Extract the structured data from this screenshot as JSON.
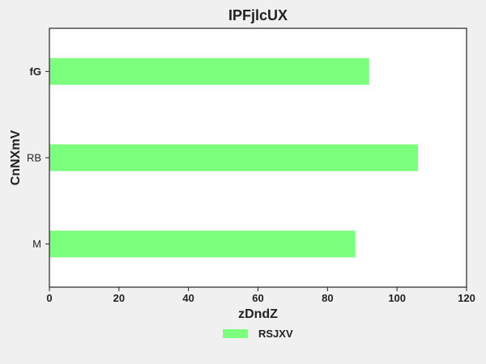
{
  "chart_data": {
    "type": "bar",
    "orientation": "horizontal",
    "title": "IPFjlcUX",
    "xlabel": "zDndZ",
    "ylabel": "CnNXmV",
    "categories": [
      "M",
      "RB",
      "fG"
    ],
    "series": [
      {
        "name": "RSJXV",
        "values": [
          88,
          106,
          92
        ],
        "color": "#7cff7c"
      }
    ],
    "xlim": [
      0,
      120
    ],
    "x_ticks": [
      0,
      20,
      40,
      60,
      80,
      100,
      120
    ],
    "x_tick_labels": [
      "0",
      "20",
      "40",
      "60",
      "80",
      "100",
      "120"
    ],
    "category_label_weights": [
      "normal",
      "normal",
      "bold"
    ],
    "grid": false,
    "legend": {
      "placement": "bottom-center",
      "entries": [
        "RSJXV"
      ]
    },
    "colors": {
      "background": "#f0f0f0",
      "plot_background": "#ffffff",
      "axis": "#222222"
    }
  }
}
